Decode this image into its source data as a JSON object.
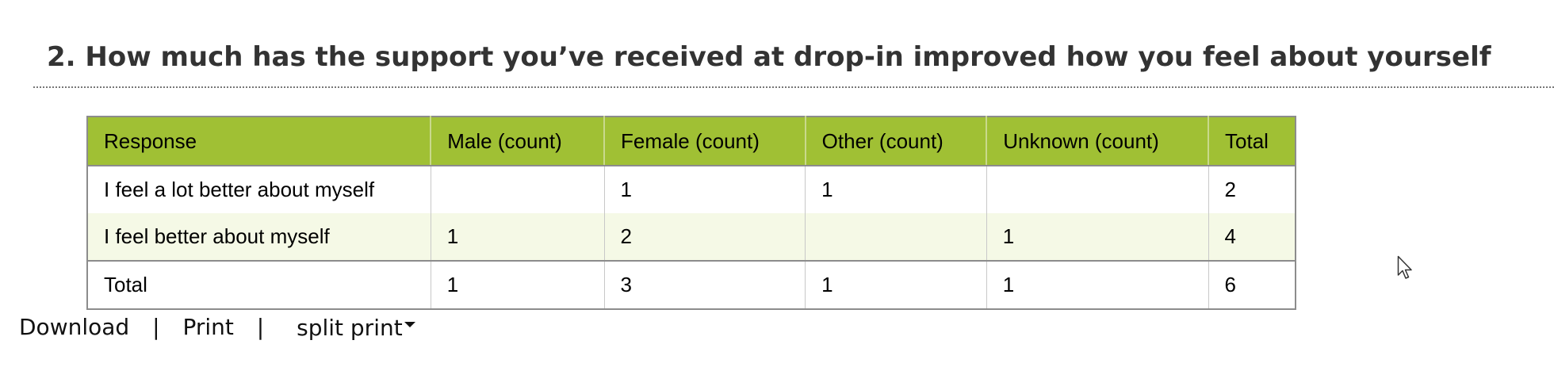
{
  "question": {
    "title": "2. How much has the support you’ve received at drop-in improved how you feel about yourself"
  },
  "table": {
    "headers": [
      "Response",
      "Male (count)",
      "Female (count)",
      "Other (count)",
      "Unknown (count)",
      "Total"
    ],
    "rows": [
      [
        "I feel a lot better about myself",
        "",
        "1",
        "1",
        "",
        "2"
      ],
      [
        "I feel better about myself",
        "1",
        "2",
        "",
        "1",
        "4"
      ]
    ],
    "footer": [
      "Total",
      "1",
      "3",
      "1",
      "1",
      "6"
    ],
    "colors": {
      "header_bg": "#a0c034",
      "alt_row_bg": "#f5f9e6",
      "border": "#8c8c8c"
    }
  },
  "actions": {
    "download_label": "Download",
    "separator": "|",
    "print_label": "Print",
    "split_print_label": "split print",
    "split_print_icon": "caret-down-icon"
  },
  "cursor": {
    "icon": "mouse-pointer-icon"
  }
}
